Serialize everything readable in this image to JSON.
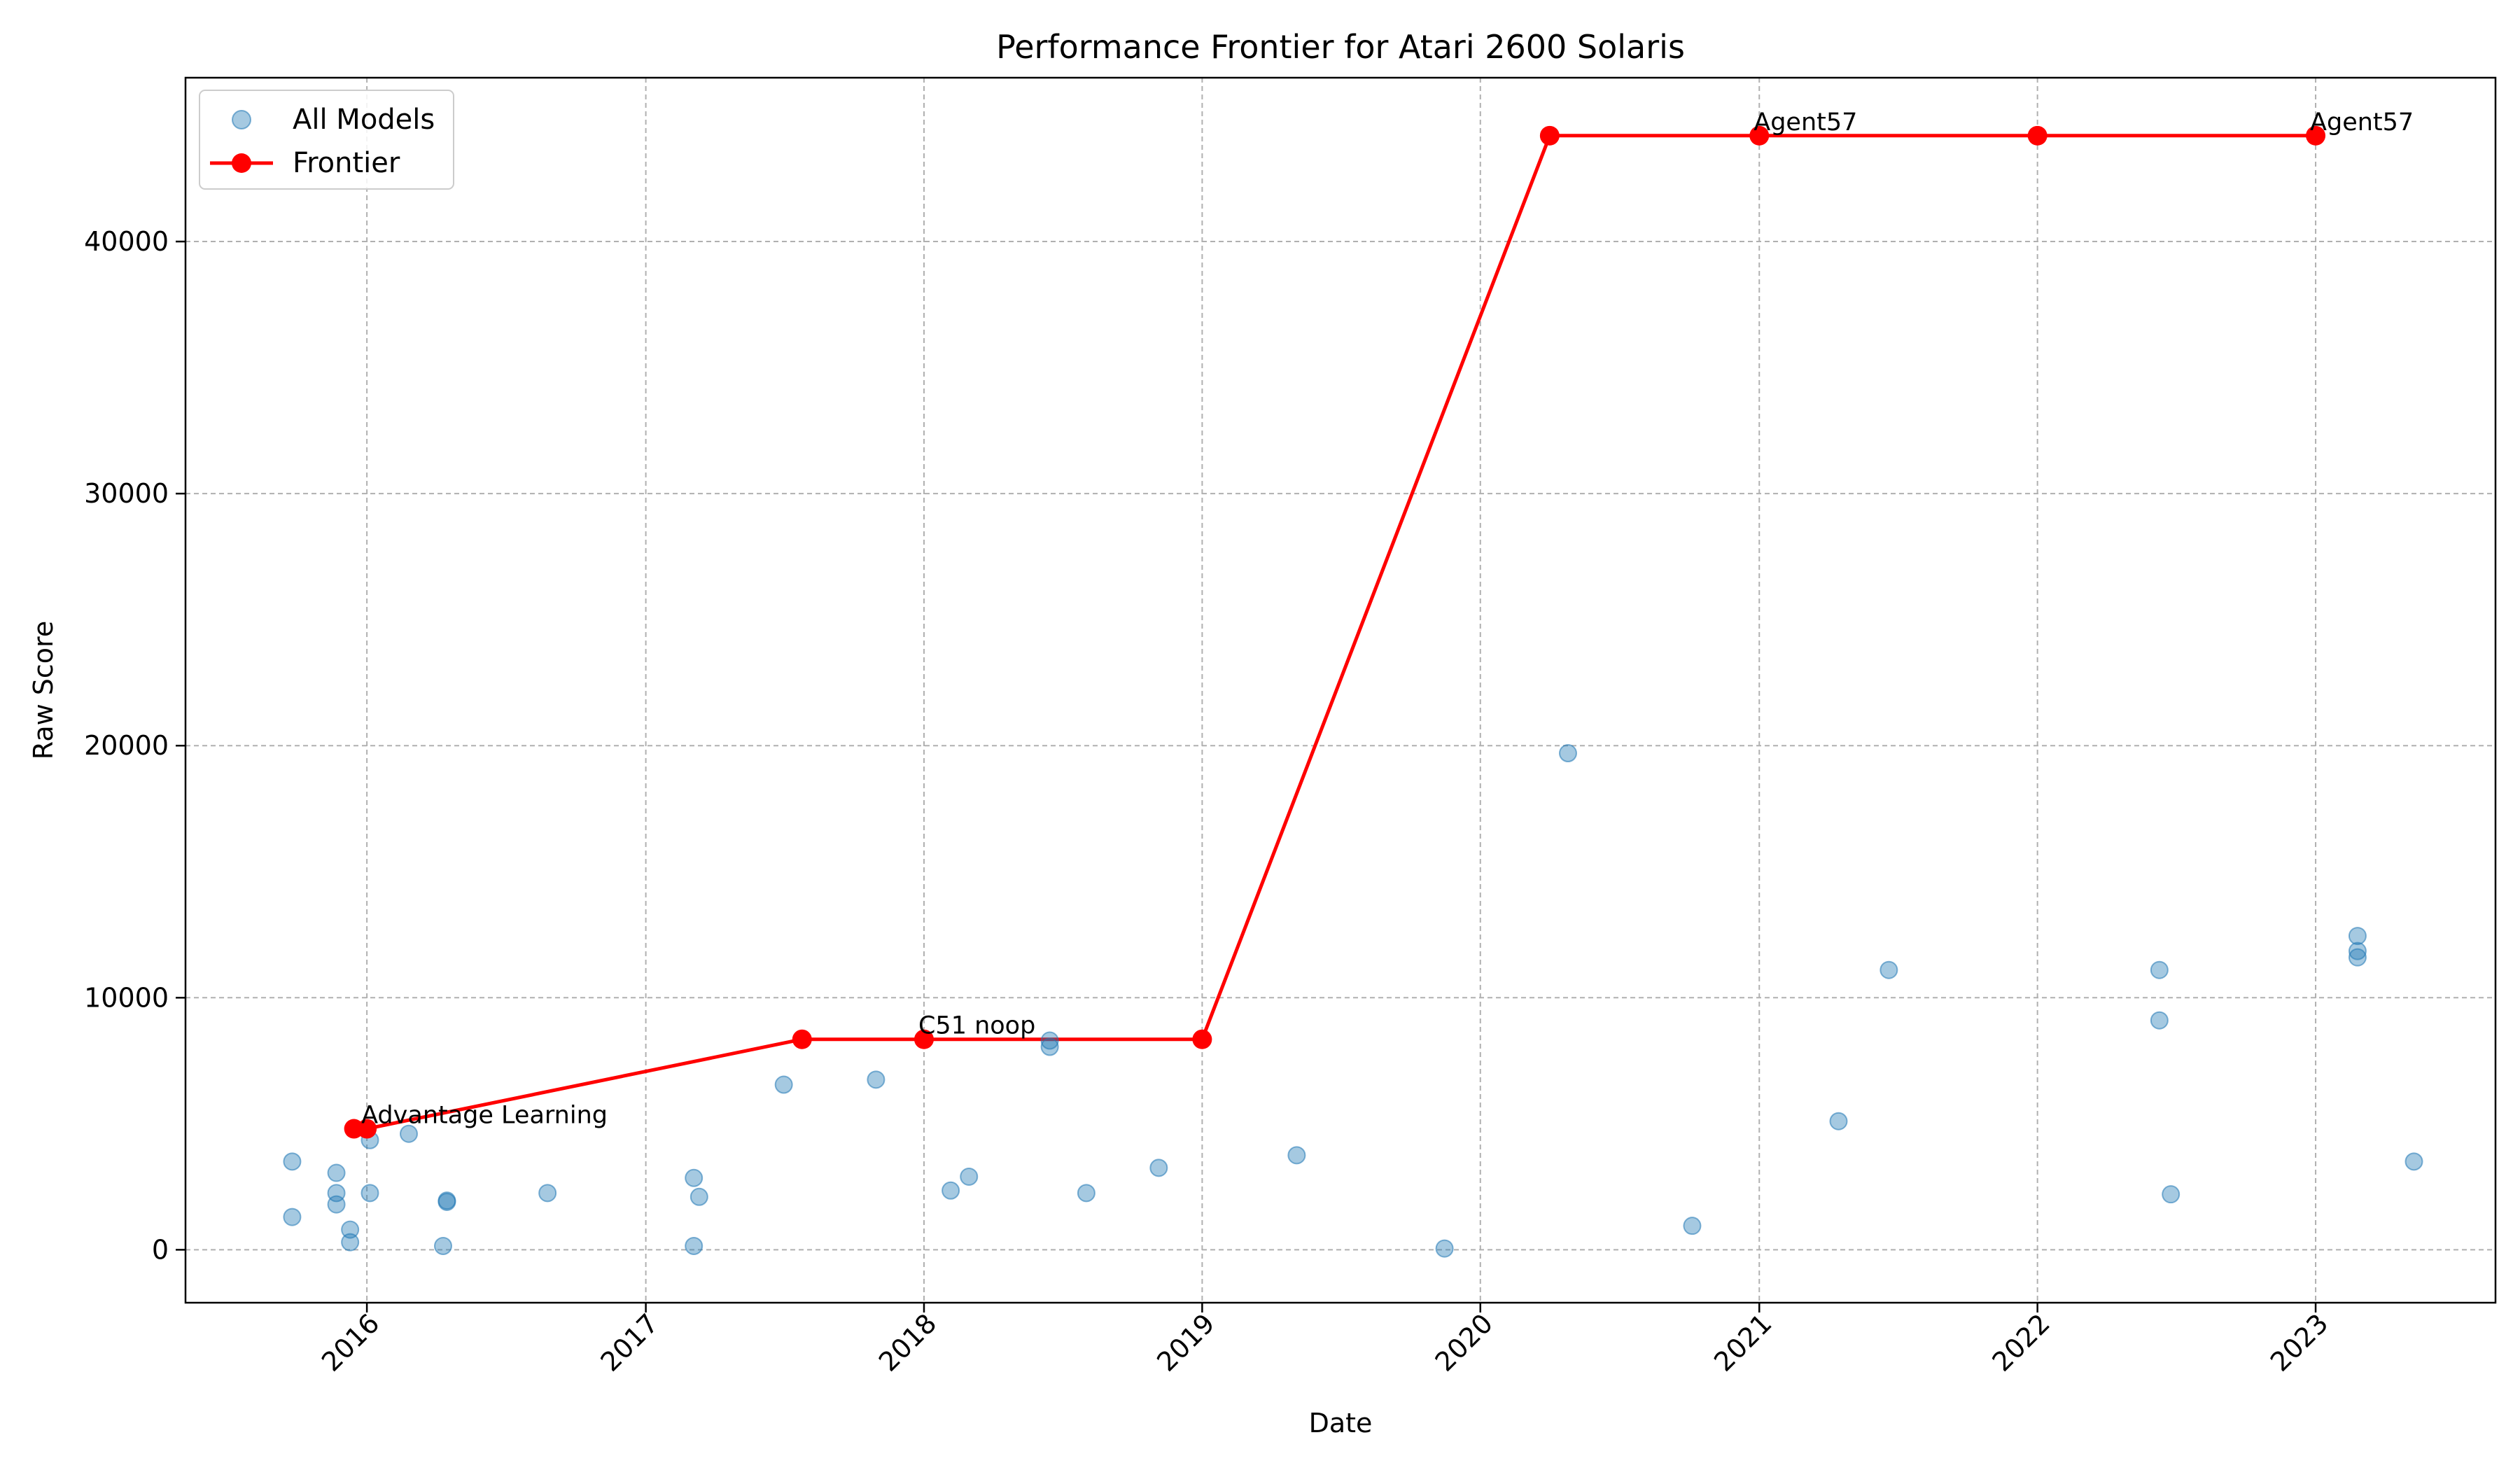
{
  "chart_data": {
    "type": "line",
    "title": "Performance Frontier for Atari 2600 Solaris",
    "xlabel": "Date",
    "ylabel": "Raw Score",
    "xlim": [
      "2015-05-08",
      "2023-08-25"
    ],
    "ylim": [
      -2100,
      46500
    ],
    "x_ticks": [
      "2016",
      "2017",
      "2018",
      "2019",
      "2020",
      "2021",
      "2022",
      "2023"
    ],
    "y_ticks": [
      0,
      10000,
      20000,
      30000,
      40000
    ],
    "grid": true,
    "legend_position": "top-left",
    "colors": {
      "scatter": "#1f77b4",
      "frontier": "#ff0000"
    },
    "series": [
      {
        "name": "All Models",
        "kind": "scatter",
        "points": [
          {
            "x": "2015-09-25",
            "y": 3500
          },
          {
            "x": "2015-09-25",
            "y": 1300
          },
          {
            "x": "2015-11-22",
            "y": 3050
          },
          {
            "x": "2015-11-22",
            "y": 2250
          },
          {
            "x": "2015-11-22",
            "y": 1800
          },
          {
            "x": "2015-12-10",
            "y": 800
          },
          {
            "x": "2015-12-10",
            "y": 300
          },
          {
            "x": "2016-01-05",
            "y": 4350
          },
          {
            "x": "2016-01-05",
            "y": 2250
          },
          {
            "x": "2016-02-25",
            "y": 4600
          },
          {
            "x": "2016-04-10",
            "y": 150
          },
          {
            "x": "2016-04-15",
            "y": 1900
          },
          {
            "x": "2016-04-15",
            "y": 1950
          },
          {
            "x": "2016-08-25",
            "y": 2250
          },
          {
            "x": "2017-03-05",
            "y": 2850
          },
          {
            "x": "2017-03-05",
            "y": 150
          },
          {
            "x": "2017-03-12",
            "y": 2100
          },
          {
            "x": "2017-07-01",
            "y": 6550
          },
          {
            "x": "2017-10-30",
            "y": 6750
          },
          {
            "x": "2018-02-05",
            "y": 2350
          },
          {
            "x": "2018-03-01",
            "y": 2900
          },
          {
            "x": "2018-06-15",
            "y": 8050
          },
          {
            "x": "2018-06-15",
            "y": 8300
          },
          {
            "x": "2018-08-02",
            "y": 2250
          },
          {
            "x": "2018-11-05",
            "y": 3250
          },
          {
            "x": "2019-05-05",
            "y": 3750
          },
          {
            "x": "2019-11-15",
            "y": 50
          },
          {
            "x": "2020-04-25",
            "y": 19700
          },
          {
            "x": "2020-10-05",
            "y": 950
          },
          {
            "x": "2021-04-15",
            "y": 5100
          },
          {
            "x": "2021-06-20",
            "y": 11100
          },
          {
            "x": "2022-06-10",
            "y": 11100
          },
          {
            "x": "2022-06-10",
            "y": 9100
          },
          {
            "x": "2022-06-25",
            "y": 2200
          },
          {
            "x": "2023-02-25",
            "y": 12450
          },
          {
            "x": "2023-02-25",
            "y": 11850
          },
          {
            "x": "2023-02-25",
            "y": 11600
          },
          {
            "x": "2023-05-10",
            "y": 3500
          }
        ]
      },
      {
        "name": "Frontier",
        "kind": "line",
        "points": [
          {
            "x": "2015-12-15",
            "y": 4800
          },
          {
            "x": "2016-01-01",
            "y": 4800
          },
          {
            "x": "2017-07-25",
            "y": 8350
          },
          {
            "x": "2018-01-01",
            "y": 8350
          },
          {
            "x": "2019-01-01",
            "y": 8350
          },
          {
            "x": "2020-04-01",
            "y": 44200
          },
          {
            "x": "2021-01-01",
            "y": 44200
          },
          {
            "x": "2022-01-01",
            "y": 44200
          },
          {
            "x": "2023-01-01",
            "y": 44200
          }
        ]
      }
    ],
    "annotations": [
      {
        "text": "Advantage Learning",
        "x": "2016-01-01",
        "y": 4800
      },
      {
        "text": "C51 noop",
        "x": "2018-01-01",
        "y": 8350
      },
      {
        "text": "Agent57",
        "x": "2021-01-01",
        "y": 44200
      },
      {
        "text": "Agent57",
        "x": "2023-01-01",
        "y": 44200
      }
    ]
  }
}
